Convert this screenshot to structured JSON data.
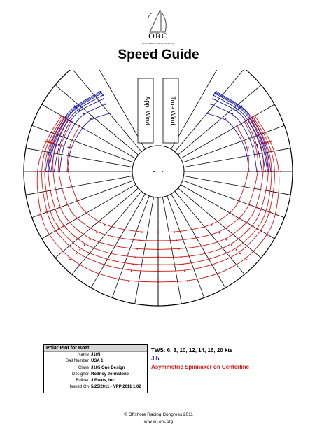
{
  "header": {
    "logo_text": "ORC",
    "logo_tagline": "World Leader in Rating Technology",
    "title": "Speed Guide"
  },
  "chart_data": {
    "type": "polar",
    "title": "Speed Guide",
    "angle_range_deg": [
      30,
      180
    ],
    "boat_speed_rings_kts": [
      2,
      3,
      4,
      5,
      6,
      7,
      8,
      9
    ],
    "overlay_labels": [
      "App. Wind",
      "True Wind"
    ],
    "series": [
      {
        "name": "Jib",
        "color": "#1a1ab0",
        "curves": [
          {
            "tws": 6,
            "points": [
              [
                40,
                4.6
              ],
              [
                52,
                5.5
              ],
              [
                60,
                5.7
              ],
              [
                75,
                6.0
              ],
              [
                90,
                6.0
              ]
            ]
          },
          {
            "tws": 8,
            "points": [
              [
                38,
                5.5
              ],
              [
                52,
                6.3
              ],
              [
                60,
                6.5
              ],
              [
                75,
                6.7
              ],
              [
                90,
                6.7
              ]
            ]
          },
          {
            "tws": 10,
            "points": [
              [
                37,
                6.0
              ],
              [
                52,
                6.8
              ],
              [
                60,
                7.0
              ],
              [
                75,
                7.1
              ],
              [
                90,
                7.2
              ]
            ]
          },
          {
            "tws": 12,
            "points": [
              [
                36,
                6.3
              ],
              [
                52,
                7.0
              ],
              [
                60,
                7.2
              ],
              [
                75,
                7.4
              ],
              [
                90,
                7.5
              ]
            ]
          },
          {
            "tws": 14,
            "points": [
              [
                36,
                6.5
              ],
              [
                52,
                7.2
              ],
              [
                60,
                7.4
              ],
              [
                75,
                7.6
              ],
              [
                90,
                7.7
              ]
            ]
          },
          {
            "tws": 16,
            "points": [
              [
                36,
                6.6
              ],
              [
                52,
                7.3
              ],
              [
                60,
                7.5
              ],
              [
                75,
                7.7
              ],
              [
                90,
                7.8
              ]
            ]
          },
          {
            "tws": 20,
            "points": [
              [
                36,
                6.7
              ],
              [
                52,
                7.4
              ],
              [
                60,
                7.6
              ],
              [
                75,
                7.9
              ],
              [
                90,
                8.0
              ]
            ]
          }
        ]
      },
      {
        "name": "Asymmetric Spinnaker on Centerline",
        "color": "#d01818",
        "curves": [
          {
            "tws": 6,
            "points": [
              [
                60,
                6.0
              ],
              [
                75,
                6.2
              ],
              [
                90,
                6.0
              ],
              [
                110,
                5.6
              ],
              [
                120,
                5.3
              ],
              [
                135,
                4.6
              ],
              [
                150,
                3.8
              ],
              [
                165,
                3.4
              ],
              [
                180,
                3.2
              ]
            ]
          },
          {
            "tws": 8,
            "points": [
              [
                60,
                6.8
              ],
              [
                75,
                7.0
              ],
              [
                90,
                6.9
              ],
              [
                110,
                6.6
              ],
              [
                120,
                6.3
              ],
              [
                135,
                5.6
              ],
              [
                150,
                4.7
              ],
              [
                165,
                4.2
              ],
              [
                180,
                4.0
              ]
            ]
          },
          {
            "tws": 10,
            "points": [
              [
                60,
                7.2
              ],
              [
                75,
                7.5
              ],
              [
                90,
                7.4
              ],
              [
                110,
                7.3
              ],
              [
                120,
                7.1
              ],
              [
                135,
                6.5
              ],
              [
                150,
                5.6
              ],
              [
                165,
                5.0
              ],
              [
                180,
                4.8
              ]
            ]
          },
          {
            "tws": 12,
            "points": [
              [
                60,
                7.4
              ],
              [
                75,
                7.8
              ],
              [
                90,
                7.9
              ],
              [
                110,
                7.8
              ],
              [
                120,
                7.7
              ],
              [
                135,
                7.2
              ],
              [
                150,
                6.4
              ],
              [
                165,
                5.8
              ],
              [
                180,
                5.5
              ]
            ]
          },
          {
            "tws": 14,
            "points": [
              [
                60,
                7.6
              ],
              [
                75,
                8.0
              ],
              [
                90,
                8.2
              ],
              [
                110,
                8.3
              ],
              [
                120,
                8.2
              ],
              [
                135,
                7.8
              ],
              [
                150,
                7.0
              ],
              [
                165,
                6.5
              ],
              [
                180,
                6.2
              ]
            ]
          },
          {
            "tws": 16,
            "points": [
              [
                60,
                7.7
              ],
              [
                75,
                8.2
              ],
              [
                90,
                8.5
              ],
              [
                110,
                8.6
              ],
              [
                120,
                8.6
              ],
              [
                135,
                8.3
              ],
              [
                150,
                7.6
              ],
              [
                165,
                7.1
              ],
              [
                180,
                6.8
              ]
            ]
          },
          {
            "tws": 20,
            "points": [
              [
                60,
                7.9
              ],
              [
                75,
                8.4
              ],
              [
                90,
                8.9
              ],
              [
                110,
                9.2
              ],
              [
                120,
                9.3
              ],
              [
                135,
                9.1
              ],
              [
                150,
                8.6
              ],
              [
                165,
                8.1
              ],
              [
                180,
                7.8
              ]
            ]
          }
        ]
      }
    ]
  },
  "info": {
    "header": "Polar Plot for Boat",
    "rows": [
      {
        "label": "Name",
        "value": "J105"
      },
      {
        "label": "Sail Number",
        "value": "USA 1"
      },
      {
        "label": "Class",
        "value": "J105 One Design"
      },
      {
        "label": "Designer",
        "value": "Rodney Johnstone"
      },
      {
        "label": "Builder",
        "value": "J Boats, Inc."
      },
      {
        "label": "Issued On",
        "value": "5/25/2011 - VPP 2011 1.02"
      }
    ]
  },
  "legend": {
    "tws": "TWS: 6, 8, 10, 12, 14, 16, 20 kts",
    "jib": "Jib",
    "spinnaker": "Asymmetric Spinnaker on Centerline"
  },
  "footer": {
    "copyright": "© Offshore Racing Congress 2011",
    "url": "w w w .orc.org"
  }
}
